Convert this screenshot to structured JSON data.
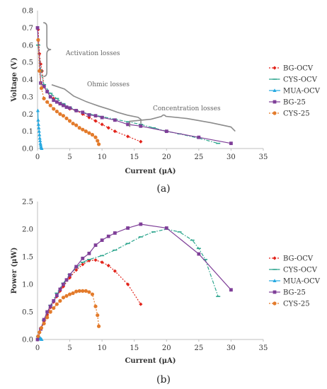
{
  "colors": {
    "BG-OCV": "#e2231a",
    "CYS-OCV": "#2ca58d",
    "MUA-OCV": "#27a9e1",
    "BG-25": "#7f3f98",
    "CYS-25": "#e37b2b",
    "axis": "#bfbfbf",
    "brace": "#8c8c8c"
  },
  "chart_data": [
    {
      "type": "line",
      "panel_label": "(a)",
      "xlabel": "Current (μA)",
      "ylabel": "Voltage (V)",
      "xlim": [
        0,
        35
      ],
      "ylim": [
        0,
        0.8
      ],
      "xticks": [
        "0",
        "5",
        "10",
        "15",
        "20",
        "25",
        "30",
        "35"
      ],
      "yticks": [
        "0.0",
        "0.1",
        "0.2",
        "0.3",
        "0.4",
        "0.5",
        "0.6",
        "0.7",
        "0.8"
      ],
      "grid": false,
      "legend": "right",
      "annotations": [
        "Activation losses",
        "Ohmic losses",
        "Concentration losses"
      ],
      "series": [
        {
          "name": "BG-OCV",
          "marker": "diamond",
          "dash": "dotted",
          "x": [
            0.1,
            0.3,
            0.5,
            0.7,
            1.0,
            1.5,
            2.0,
            2.5,
            3.0,
            3.5,
            4.0,
            5.0,
            6.0,
            7.0,
            8.0,
            9.0,
            10.0,
            11.0,
            12.0,
            14.0,
            16.0
          ],
          "y": [
            0.69,
            0.55,
            0.49,
            0.45,
            0.36,
            0.33,
            0.3,
            0.29,
            0.27,
            0.26,
            0.25,
            0.23,
            0.22,
            0.2,
            0.18,
            0.16,
            0.14,
            0.12,
            0.1,
            0.07,
            0.04
          ]
        },
        {
          "name": "CYS-OCV",
          "marker": "dash",
          "dash": "dashdot",
          "x": [
            0.1,
            0.5,
            1.0,
            2.0,
            3.0,
            4.0,
            5.0,
            6.0,
            8.0,
            10.0,
            12.0,
            14.0,
            16.0,
            18.0,
            20.0,
            22.0,
            25.0,
            28.0
          ],
          "y": [
            0.6,
            0.45,
            0.37,
            0.32,
            0.29,
            0.26,
            0.24,
            0.22,
            0.2,
            0.185,
            0.17,
            0.155,
            0.14,
            0.12,
            0.1,
            0.085,
            0.06,
            0.03
          ]
        },
        {
          "name": "MUA-OCV",
          "marker": "triangle",
          "dash": "solid",
          "x": [
            0.05,
            0.1,
            0.15,
            0.2,
            0.25,
            0.3,
            0.35,
            0.4,
            0.45,
            0.5,
            0.55,
            0.6,
            0.65
          ],
          "y": [
            0.22,
            0.165,
            0.14,
            0.12,
            0.1,
            0.08,
            0.06,
            0.045,
            0.03,
            0.02,
            0.01,
            0.005,
            0.0
          ]
        },
        {
          "name": "BG-25",
          "marker": "square",
          "dash": "solid",
          "x": [
            0.0,
            0.5,
            1.0,
            1.5,
            2.0,
            2.5,
            3.0,
            3.5,
            4.0,
            4.5,
            5.0,
            6.0,
            7.0,
            8.0,
            9.0,
            10.0,
            12.0,
            14.0,
            16.0,
            20.0,
            25.0,
            30.0
          ],
          "y": [
            0.7,
            0.38,
            0.36,
            0.33,
            0.3,
            0.28,
            0.27,
            0.26,
            0.25,
            0.24,
            0.235,
            0.22,
            0.21,
            0.195,
            0.19,
            0.18,
            0.165,
            0.14,
            0.13,
            0.1,
            0.065,
            0.03
          ]
        },
        {
          "name": "CYS-25",
          "marker": "circle",
          "dash": "dotted",
          "x": [
            0.1,
            0.3,
            0.6,
            1.0,
            1.5,
            2.0,
            2.5,
            3.0,
            3.5,
            4.0,
            4.5,
            5.0,
            5.5,
            6.0,
            6.5,
            7.0,
            7.5,
            8.0,
            8.5,
            9.0,
            9.3,
            9.5
          ],
          "y": [
            0.63,
            0.45,
            0.35,
            0.29,
            0.27,
            0.25,
            0.23,
            0.215,
            0.2,
            0.19,
            0.175,
            0.16,
            0.145,
            0.135,
            0.12,
            0.11,
            0.1,
            0.09,
            0.08,
            0.065,
            0.045,
            0.025
          ]
        }
      ]
    },
    {
      "type": "line",
      "panel_label": "(b)",
      "xlabel": "Current (μA)",
      "ylabel": "Power (μW)",
      "xlim": [
        0,
        35
      ],
      "ylim": [
        0,
        2.5
      ],
      "xticks": [
        "0",
        "5",
        "10",
        "15",
        "20",
        "25",
        "30",
        "35"
      ],
      "yticks": [
        "0.0",
        "0.5",
        "1.0",
        "1.5",
        "2.0",
        "2.5"
      ],
      "grid": false,
      "legend": "right",
      "series": [
        {
          "name": "BG-OCV",
          "marker": "diamond",
          "dash": "dotted",
          "x": [
            0.1,
            0.5,
            1.0,
            1.5,
            2.0,
            2.5,
            3.0,
            3.5,
            4.0,
            5.0,
            6.0,
            7.0,
            8.0,
            9.0,
            10.0,
            11.0,
            12.0,
            14.0,
            16.0
          ],
          "y": [
            0.05,
            0.2,
            0.33,
            0.45,
            0.58,
            0.68,
            0.78,
            0.88,
            0.96,
            1.12,
            1.26,
            1.36,
            1.43,
            1.44,
            1.4,
            1.34,
            1.24,
            1.0,
            0.64
          ]
        },
        {
          "name": "CYS-OCV",
          "marker": "dash",
          "dash": "dashdot",
          "x": [
            0.1,
            1.0,
            2.0,
            3.0,
            4.0,
            5.0,
            6.0,
            7.0,
            8.0,
            10.0,
            12.0,
            14.0,
            16.0,
            18.0,
            20.0,
            22.0,
            24.0,
            25.0,
            26.0,
            28.0
          ],
          "y": [
            0.05,
            0.35,
            0.62,
            0.84,
            1.02,
            1.18,
            1.3,
            1.4,
            1.45,
            1.52,
            1.62,
            1.74,
            1.86,
            1.95,
            2.0,
            1.95,
            1.8,
            1.65,
            1.45,
            0.78
          ]
        },
        {
          "name": "MUA-OCV",
          "marker": "triangle",
          "dash": "solid",
          "x": [
            0.05,
            0.1,
            0.2,
            0.3,
            0.4,
            0.5,
            0.6,
            0.65
          ],
          "y": [
            0.01,
            0.02,
            0.03,
            0.03,
            0.025,
            0.015,
            0.005,
            0.0
          ]
        },
        {
          "name": "BG-25",
          "marker": "square",
          "dash": "solid",
          "x": [
            0.0,
            0.5,
            1.0,
            1.5,
            2.0,
            2.5,
            3.0,
            3.5,
            4.0,
            4.5,
            5.0,
            6.0,
            7.0,
            8.0,
            9.0,
            10.0,
            11.0,
            12.0,
            14.0,
            16.0,
            20.0,
            25.0,
            30.0
          ],
          "y": [
            0.0,
            0.19,
            0.36,
            0.5,
            0.6,
            0.7,
            0.8,
            0.91,
            1.0,
            1.08,
            1.17,
            1.32,
            1.47,
            1.56,
            1.71,
            1.8,
            1.87,
            1.93,
            2.02,
            2.09,
            2.02,
            1.55,
            0.9
          ]
        },
        {
          "name": "CYS-25",
          "marker": "circle",
          "dash": "dotted",
          "x": [
            0.1,
            0.3,
            0.6,
            1.0,
            1.5,
            2.0,
            2.5,
            3.0,
            3.5,
            4.0,
            4.5,
            5.0,
            5.5,
            6.0,
            6.5,
            7.0,
            7.5,
            8.0,
            8.5,
            9.0,
            9.3,
            9.5
          ],
          "y": [
            0.06,
            0.13,
            0.21,
            0.29,
            0.4,
            0.5,
            0.57,
            0.64,
            0.7,
            0.76,
            0.79,
            0.82,
            0.84,
            0.87,
            0.88,
            0.88,
            0.88,
            0.86,
            0.82,
            0.6,
            0.44,
            0.24
          ]
        }
      ]
    }
  ]
}
